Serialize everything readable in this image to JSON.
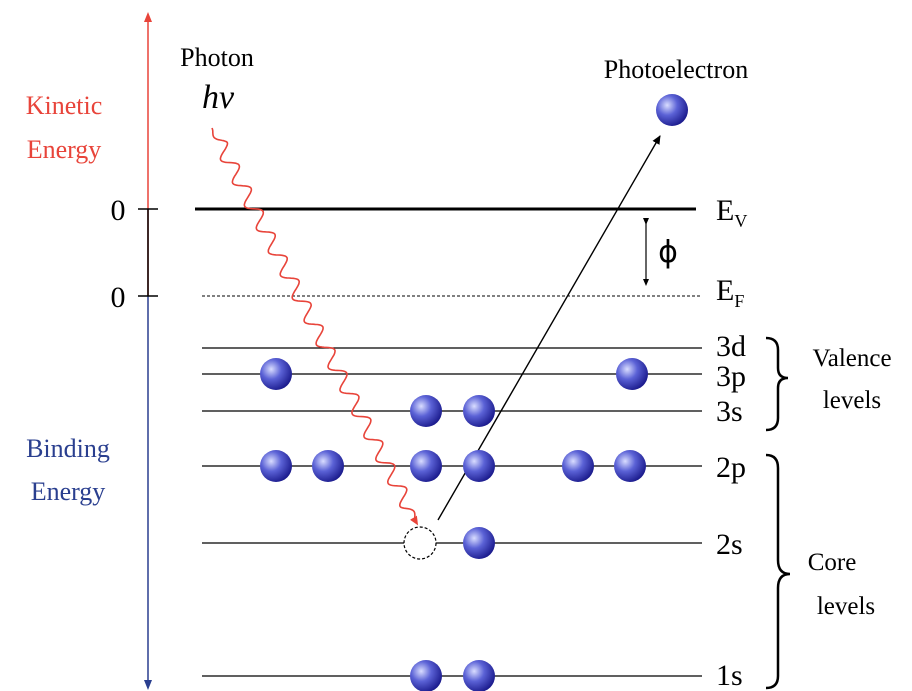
{
  "photon": {
    "label": "Photon",
    "symbol": "hν"
  },
  "photoelectron": {
    "label": "Photoelectron"
  },
  "axis": {
    "kinetic_label_line1": "Kinetic",
    "kinetic_label_line2": "Energy",
    "binding_label_line1": "Binding",
    "binding_label_line2": "Energy",
    "zero_vacuum": "0",
    "zero_fermi": "0"
  },
  "levels": {
    "vacuum": {
      "main": "E",
      "sub": "V"
    },
    "fermi": {
      "main": "E",
      "sub": "F"
    },
    "work_function_symbol": "ϕ",
    "3d": "3d",
    "3p": "3p",
    "3s": "3s",
    "2p": "2p",
    "2s": "2s",
    "1s": "1s"
  },
  "groups": {
    "valence_line1": "Valence",
    "valence_line2": "levels",
    "core_line1": "Core",
    "core_line2": "levels"
  },
  "colors": {
    "kinetic": "#e8443a",
    "binding": "#2a3f8f",
    "photon": "#e8443a",
    "electron_dark": "#1a1a8c",
    "electron_light": "#9fa8ff"
  },
  "icons": {
    "electron": "electron-sphere-icon",
    "hole": "electron-hole-icon",
    "photon": "wavy-photon-icon"
  }
}
